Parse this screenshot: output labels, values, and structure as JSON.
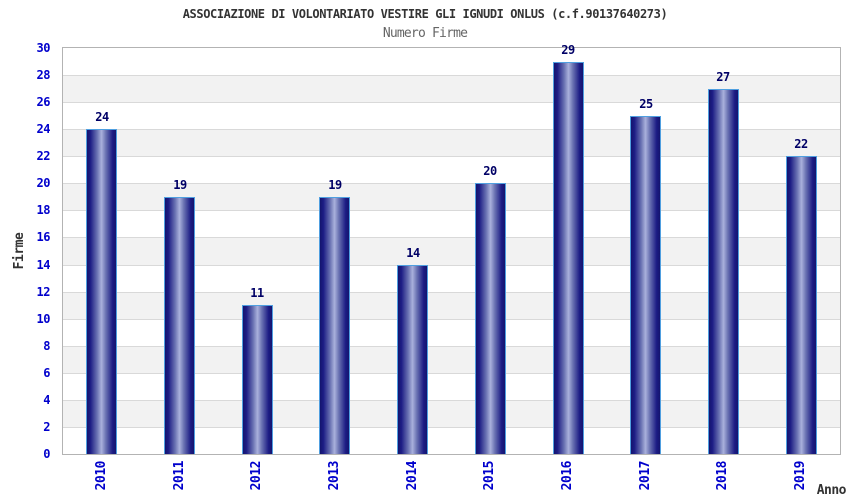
{
  "chart_data": {
    "type": "bar",
    "title": "ASSOCIAZIONE DI VOLONTARIATO VESTIRE GLI IGNUDI ONLUS (c.f.90137640273)",
    "subtitle": "Numero Firme",
    "xlabel": "Anno",
    "ylabel": "Firme",
    "categories": [
      "2010",
      "2011",
      "2012",
      "2013",
      "2014",
      "2015",
      "2016",
      "2017",
      "2018",
      "2019"
    ],
    "values": [
      24,
      19,
      11,
      19,
      14,
      20,
      29,
      25,
      27,
      22
    ],
    "ylim": [
      0,
      30
    ],
    "ytick_step": 2,
    "yticks": [
      0,
      2,
      4,
      6,
      8,
      10,
      12,
      14,
      16,
      18,
      20,
      22,
      24,
      26,
      28,
      30
    ],
    "bar_value_labels_shown": true,
    "legend": "none",
    "grid": "horizontal gridlines every 2 units with alternating white/gray bands",
    "colors": {
      "tick_label": "#0000cc",
      "bar_value_label": "#000066",
      "title": "#333333",
      "subtitle": "#666666",
      "axis_title": "#333333",
      "bar_edge_dark": "#14146e",
      "bar_mid": "#6a72b2",
      "bar_center_light": "#aab1dc",
      "bar_border": "#4f9fe0",
      "band_gray": "#f2f2f2",
      "band_white": "#ffffff",
      "gridline": "#d9d9d9",
      "plot_border": "#b3b3b3"
    }
  }
}
